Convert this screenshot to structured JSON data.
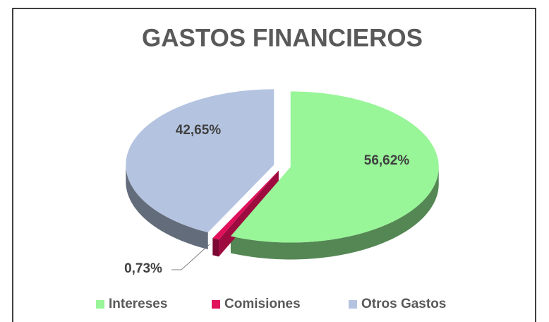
{
  "chart_data": {
    "type": "pie",
    "title": "GASTOS FINANCIEROS",
    "categories": [
      "Intereses",
      "Comisiones",
      "Otros Gastos"
    ],
    "values": [
      56.62,
      0.73,
      42.65
    ],
    "value_labels": [
      "56,62%",
      "0,73%",
      "42,65%"
    ],
    "colors": [
      "#98f598",
      "#e0105a",
      "#b4c4e0"
    ],
    "legend": "bottom"
  }
}
